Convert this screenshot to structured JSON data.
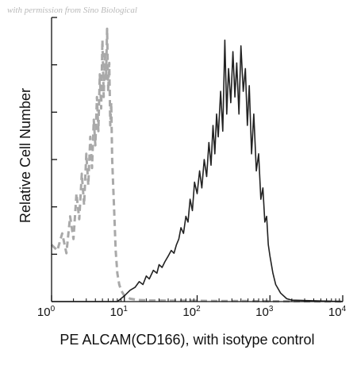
{
  "watermark": "with permission from Sino Biological",
  "chart_data": {
    "type": "line",
    "title": "",
    "xlabel": "PE ALCAM(CD166), with isotype control",
    "ylabel": "Relative Cell Number",
    "xscale": "log",
    "xlim": [
      1,
      10000
    ],
    "ylim": [
      0,
      100
    ],
    "x_ticks": [
      {
        "base": "10",
        "exp": "0",
        "value": 1
      },
      {
        "base": "10",
        "exp": "1",
        "value": 10
      },
      {
        "base": "10",
        "exp": "2",
        "value": 100
      },
      {
        "base": "10",
        "exp": "3",
        "value": 1000
      },
      {
        "base": "10",
        "exp": "4",
        "value": 10000
      }
    ],
    "y_tick_count": 6,
    "grid": false,
    "legend": "none",
    "series": [
      {
        "style": "dashed",
        "color": "#a9a9a9",
        "x": [
          1.0,
          1.2,
          1.4,
          1.6,
          1.8,
          2.0,
          2.2,
          2.4,
          2.6,
          2.8,
          3.0,
          3.2,
          3.4,
          3.6,
          3.8,
          4.0,
          4.2,
          4.4,
          4.6,
          4.8,
          5.0,
          5.2,
          5.4,
          5.6,
          5.8,
          6.0,
          6.2,
          6.4,
          6.6,
          6.8,
          7.0,
          7.3,
          7.6,
          8.0,
          8.5,
          9.0,
          10.0,
          11.0,
          12.0,
          13.5,
          15.0,
          18.0,
          22.0,
          30.0,
          45.0,
          70.0,
          100.0,
          200.0,
          500.0,
          1000.0,
          2000.0,
          10000.0
        ],
        "values": [
          20,
          18,
          24,
          17,
          30,
          22,
          38,
          29,
          45,
          34,
          52,
          41,
          58,
          47,
          64,
          55,
          72,
          60,
          80,
          68,
          92,
          72,
          88,
          78,
          96,
          74,
          84,
          62,
          70,
          50,
          42,
          30,
          18,
          10,
          6,
          4,
          2,
          1.5,
          1,
          0.8,
          0.6,
          0.5,
          0.4,
          0.4,
          0.3,
          0.3,
          0.3,
          0.2,
          0.2,
          0.1,
          0.1,
          0
        ]
      },
      {
        "style": "solid",
        "color": "#222222",
        "x": [
          1.0,
          5.0,
          8.0,
          10.0,
          12.0,
          14.0,
          16.0,
          18.0,
          20.0,
          22.0,
          25.0,
          28.0,
          30.0,
          33.0,
          36.0,
          40.0,
          44.0,
          48.0,
          52.0,
          56.0,
          60.0,
          65.0,
          70.0,
          75.0,
          80.0,
          86.0,
          92.0,
          100.0,
          108.0,
          116.0,
          125.0,
          135.0,
          145.0,
          155.0,
          165.0,
          175.0,
          185.0,
          195.0,
          210.0,
          225.0,
          240.0,
          255.0,
          270.0,
          290.0,
          310.0,
          330.0,
          350.0,
          375.0,
          400.0,
          430.0,
          460.0,
          490.0,
          520.0,
          560.0,
          600.0,
          650.0,
          700.0,
          750.0,
          800.0,
          850.0,
          900.0,
          950.0,
          1000.0,
          1100.0,
          1200.0,
          1400.0,
          1700.0,
          2000.0,
          10000.0
        ],
        "values": [
          0,
          0,
          0,
          2,
          4,
          5,
          7,
          6,
          9,
          8,
          11,
          10,
          13,
          12,
          14,
          16,
          18,
          17,
          20,
          22,
          26,
          24,
          30,
          28,
          36,
          32,
          42,
          38,
          46,
          40,
          50,
          44,
          56,
          48,
          62,
          52,
          66,
          58,
          74,
          60,
          92,
          66,
          82,
          70,
          88,
          72,
          84,
          66,
          90,
          74,
          82,
          62,
          76,
          52,
          66,
          46,
          52,
          36,
          40,
          28,
          30,
          20,
          16,
          10,
          6,
          3,
          1,
          0.5,
          0
        ]
      }
    ]
  }
}
